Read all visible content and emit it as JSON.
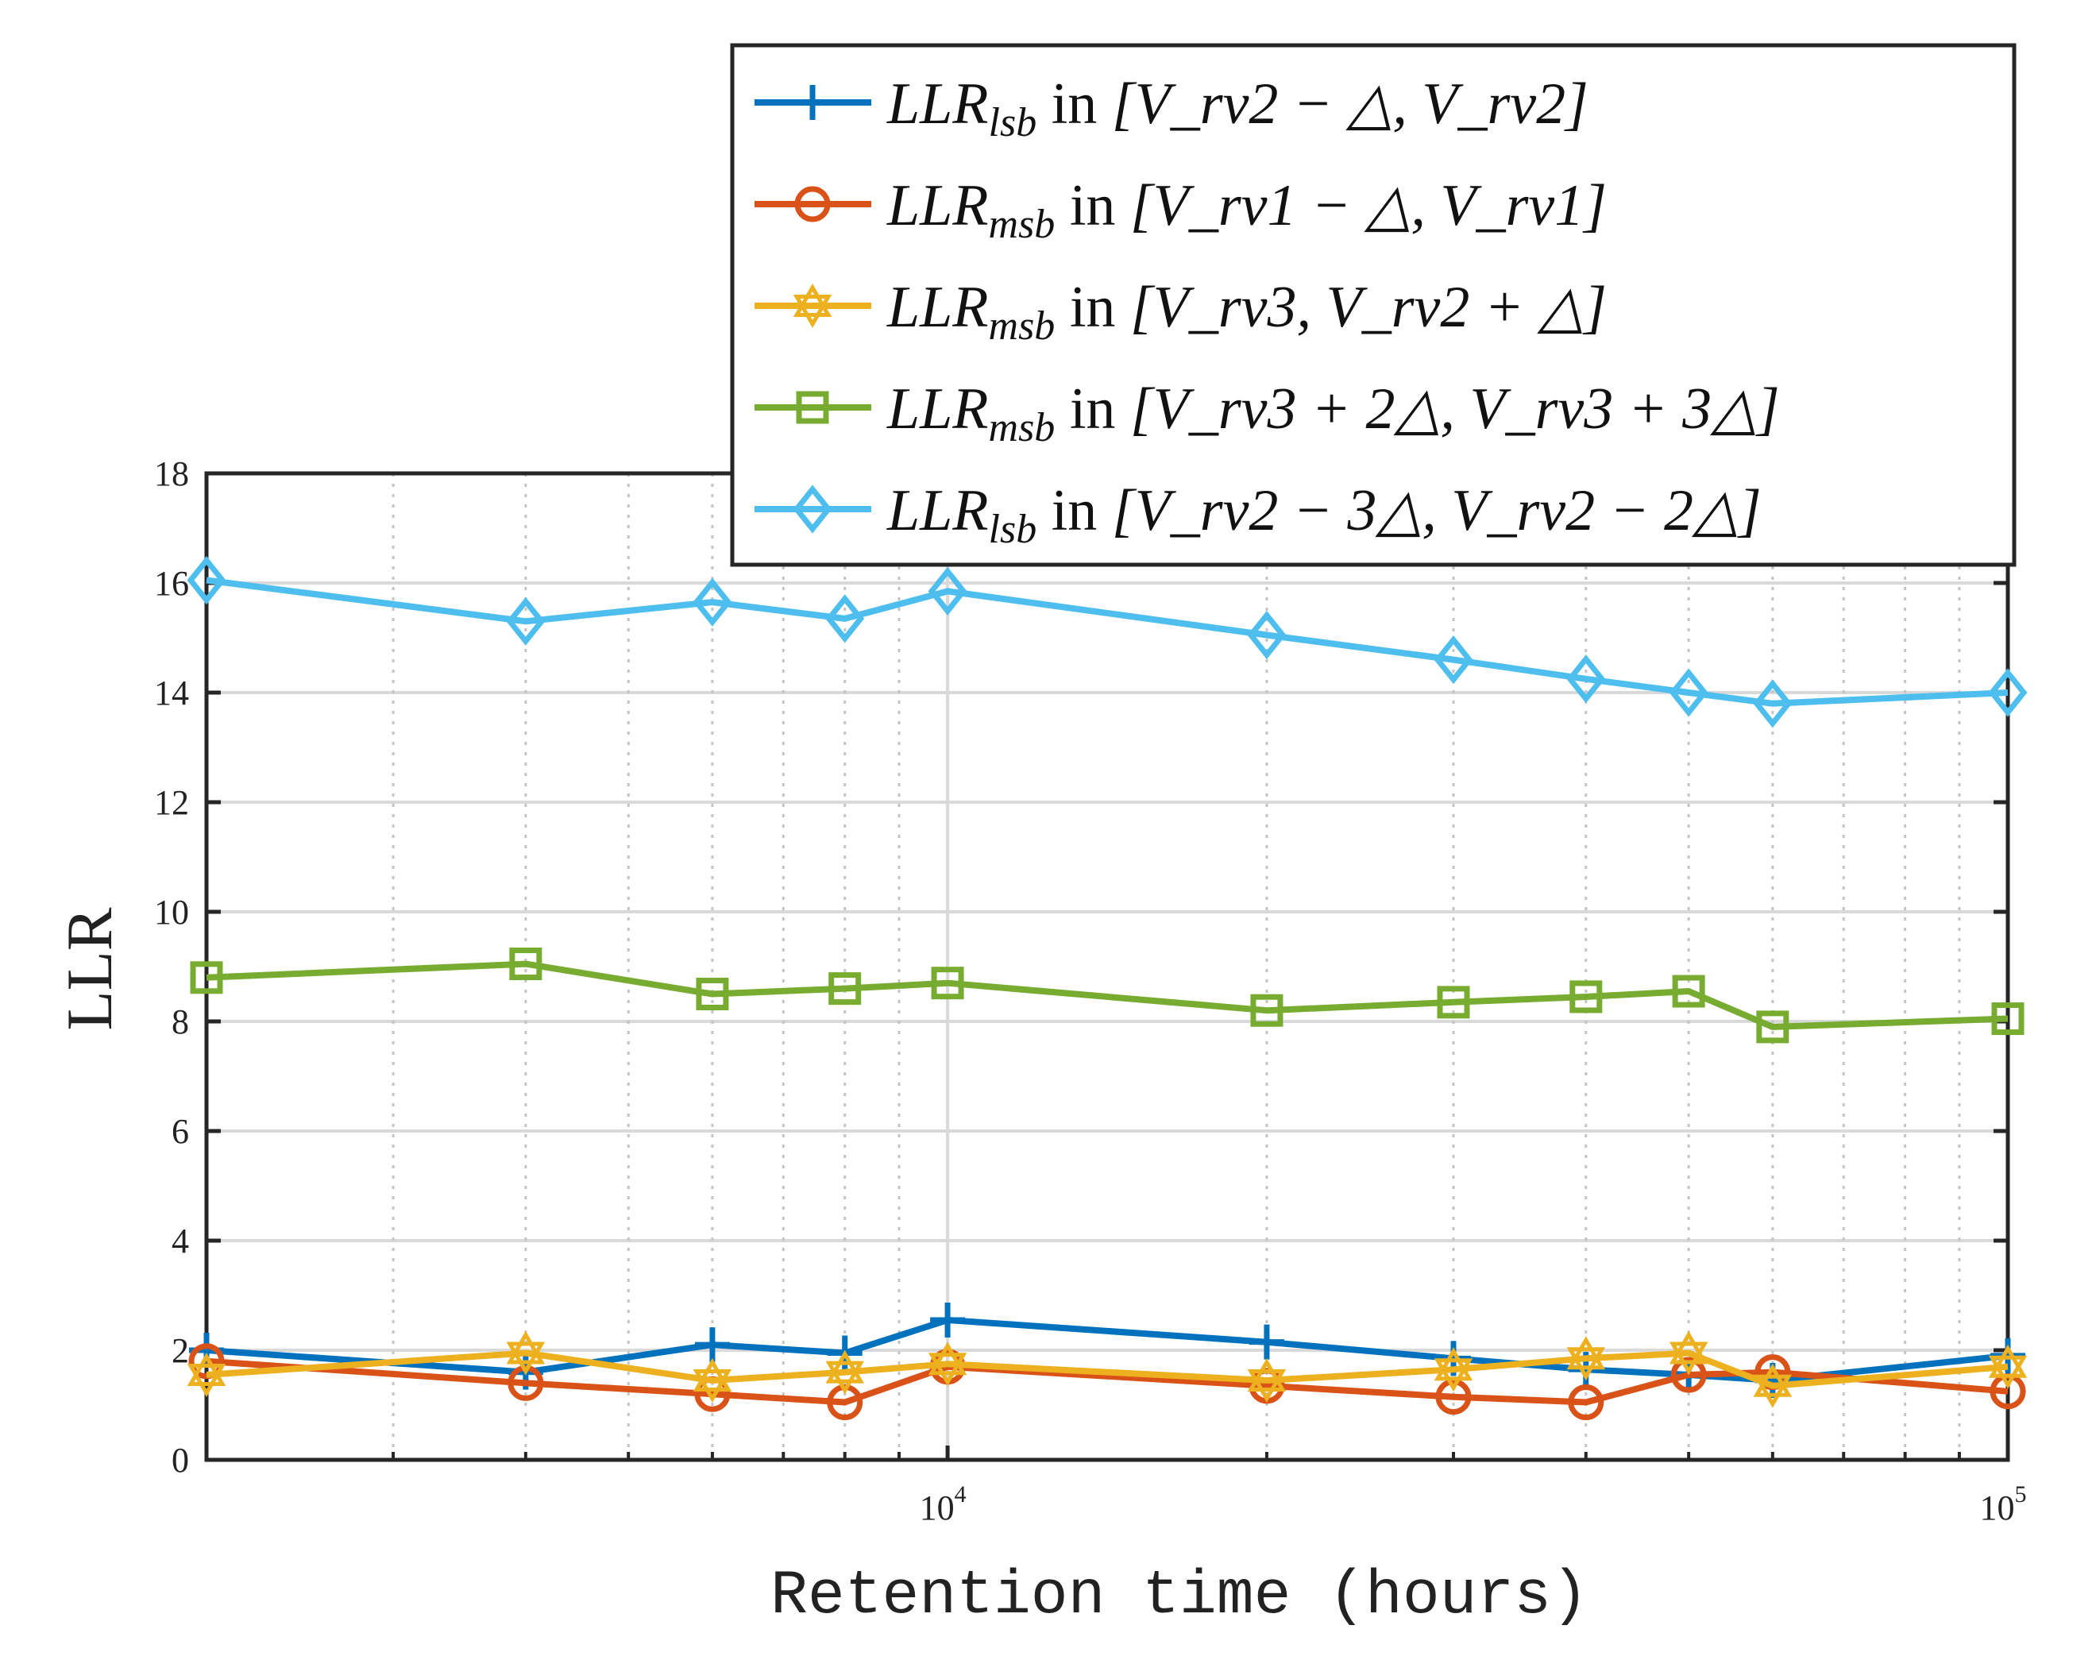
{
  "chart_data": {
    "type": "line",
    "xscale": "log",
    "xlabel": "Retention time (hours)",
    "ylabel": "LLR",
    "xlim": [
      2000,
      100000
    ],
    "ylim": [
      0,
      18
    ],
    "grid": true,
    "legend_position": "top-right",
    "x_ticks": [
      {
        "value": 10000,
        "base": "10",
        "exp": "4"
      },
      {
        "value": 100000,
        "base": "10",
        "exp": "5"
      }
    ],
    "y_ticks": [
      "0",
      "2",
      "4",
      "6",
      "8",
      "10",
      "12",
      "14",
      "16",
      "18"
    ],
    "x": [
      2000,
      4000,
      6000,
      8000,
      10000,
      20000,
      30000,
      40000,
      50000,
      60000,
      100000
    ],
    "series": [
      {
        "name": "LLR_lsb in [V_rv2 - Δ, V_rv2]",
        "legend_parts": {
          "main": "LLR",
          "sub": "lsb",
          "range": "[V_rv2 − △, V_rv2]"
        },
        "color": "#0072BD",
        "marker": "plus",
        "values": [
          2.0,
          1.6,
          2.1,
          1.95,
          2.55,
          2.15,
          1.85,
          1.65,
          1.55,
          1.45,
          1.9
        ]
      },
      {
        "name": "LLR_msb in [V_rv1 - Δ, V_rv1]",
        "legend_parts": {
          "main": "LLR",
          "sub": "msb",
          "range": "[V_rv1 − △, V_rv1]"
        },
        "color": "#D95319",
        "marker": "circle",
        "values": [
          1.8,
          1.4,
          1.2,
          1.05,
          1.7,
          1.35,
          1.15,
          1.05,
          1.55,
          1.6,
          1.25
        ]
      },
      {
        "name": "LLR_msb in [V_rv3, V_rv2 + Δ]",
        "legend_parts": {
          "main": "LLR",
          "sub": "msb",
          "range": "[V_rv3, V_rv2 + △]"
        },
        "color": "#EDB120",
        "marker": "hexagram",
        "values": [
          1.55,
          1.95,
          1.45,
          1.6,
          1.75,
          1.45,
          1.65,
          1.85,
          1.95,
          1.35,
          1.7
        ]
      },
      {
        "name": "LLR_msb in [V_rv3 + 2Δ, V_rv3 + 3Δ]",
        "legend_parts": {
          "main": "LLR",
          "sub": "msb",
          "range": "[V_rv3 + 2△, V_rv3 + 3△]"
        },
        "color": "#77AC30",
        "marker": "square",
        "values": [
          8.8,
          9.05,
          8.5,
          8.6,
          8.7,
          8.2,
          8.35,
          8.45,
          8.55,
          7.9,
          8.05
        ]
      },
      {
        "name": "LLR_lsb in [V_rv2 - 3Δ, V_rv2 - 2Δ]",
        "legend_parts": {
          "main": "LLR",
          "sub": "lsb",
          "range": "[V_rv2 − 3△, V_rv2 − 2△]"
        },
        "color": "#4DBEEE",
        "marker": "diamond",
        "values": [
          16.05,
          15.3,
          15.65,
          15.35,
          15.85,
          15.05,
          14.6,
          14.25,
          14.0,
          13.8,
          14.0
        ]
      }
    ]
  }
}
